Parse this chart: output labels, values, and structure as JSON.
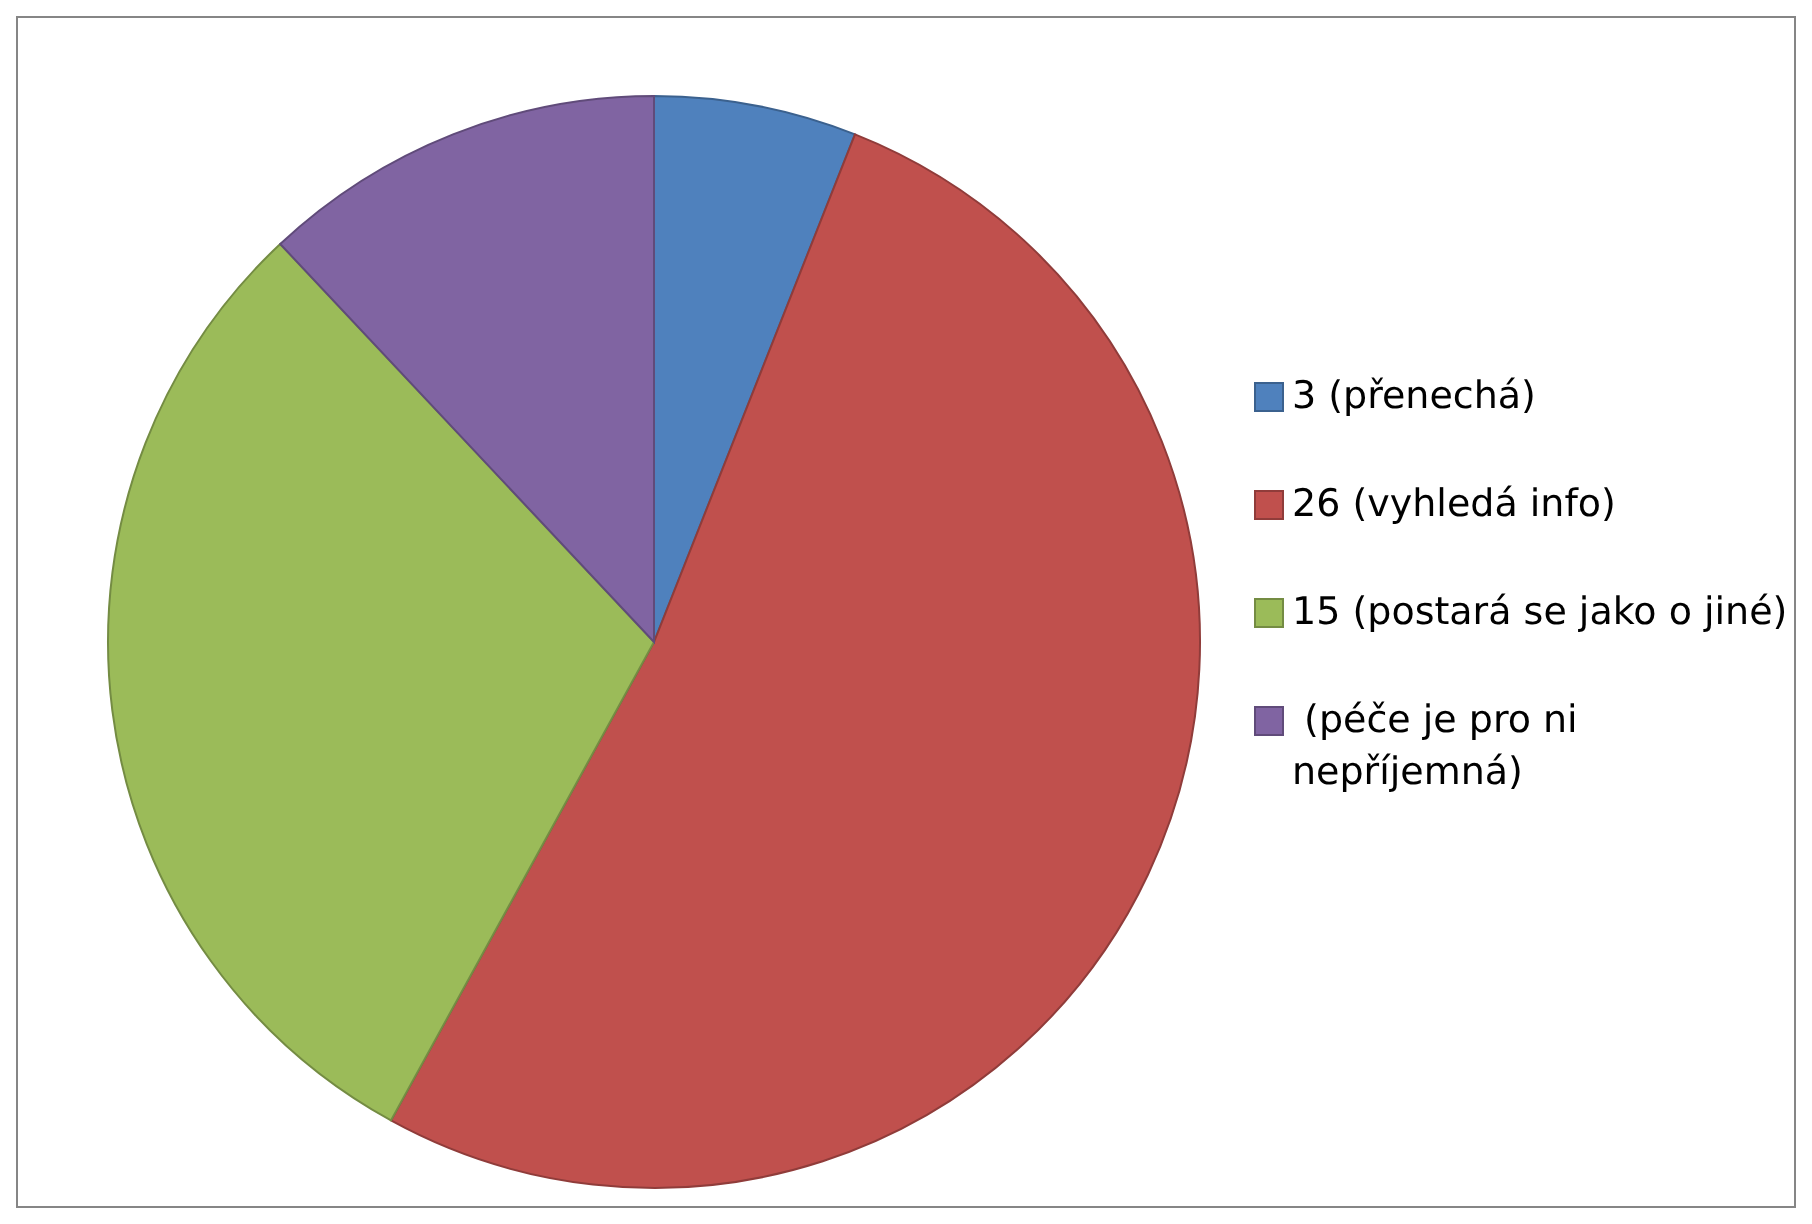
{
  "chart_data": {
    "type": "pie",
    "categories": [
      "3 (přenechá)",
      "26 (vyhledá info)",
      "15 (postará se jako o jiné)",
      " (péče je pro ni nepříjemná)"
    ],
    "values": [
      3,
      26,
      15,
      6
    ],
    "colors": [
      "#4f81bd",
      "#c0504d",
      "#9bbb59",
      "#8064a2"
    ],
    "legend": "right"
  }
}
